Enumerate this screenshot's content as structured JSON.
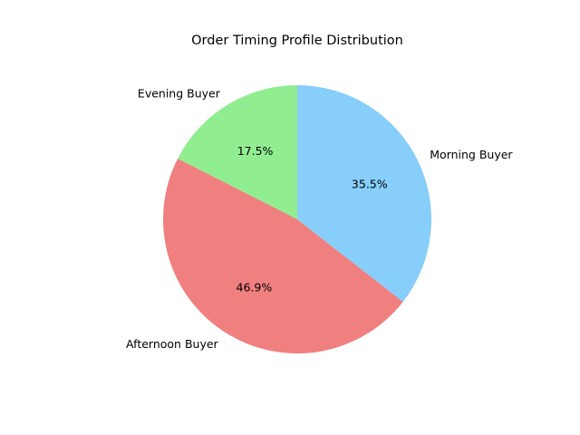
{
  "chart_data": {
    "type": "pie",
    "title": "Order Timing Profile Distribution",
    "start_angle_deg": 90,
    "direction": "counterclockwise",
    "slices": [
      {
        "label": "Evening Buyer",
        "value": 17.5,
        "pct_label": "17.5%",
        "color": "#90ee90"
      },
      {
        "label": "Afternoon Buyer",
        "value": 46.9,
        "pct_label": "46.9%",
        "color": "#f08080"
      },
      {
        "label": "Morning Buyer",
        "value": 35.5,
        "pct_label": "35.5%",
        "color": "#87cefa"
      }
    ]
  }
}
